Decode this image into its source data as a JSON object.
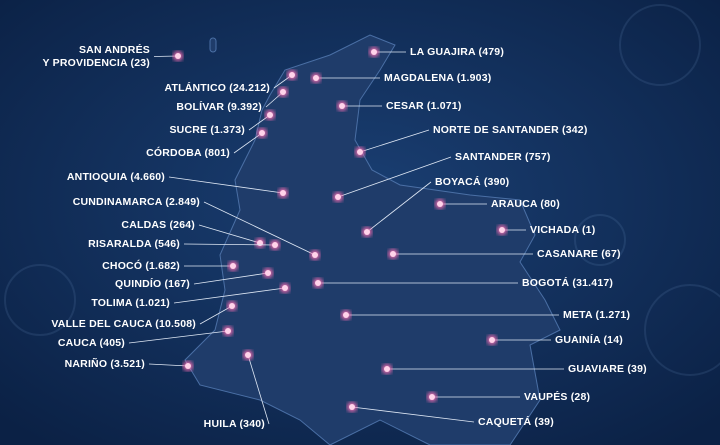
{
  "departments": [
    {
      "lines": [
        "SAN ANDRÉS",
        "Y PROVIDENCIA (23)"
      ]
    },
    {
      "lines": [
        "ATLÁNTICO (24.212)"
      ]
    },
    {
      "lines": [
        "BOLÍVAR (9.392)"
      ]
    },
    {
      "lines": [
        "SUCRE (1.373)"
      ]
    },
    {
      "lines": [
        "CÓRDOBA (801)"
      ]
    },
    {
      "lines": [
        "ANTIOQUIA (4.660)"
      ]
    },
    {
      "lines": [
        "CUNDINAMARCA (2.849)"
      ]
    },
    {
      "lines": [
        "CALDAS (264)"
      ]
    },
    {
      "lines": [
        "RISARALDA (546)"
      ]
    },
    {
      "lines": [
        "CHOCÓ (1.682)"
      ]
    },
    {
      "lines": [
        "QUINDÍO (167)"
      ]
    },
    {
      "lines": [
        "TOLIMA (1.021)"
      ]
    },
    {
      "lines": [
        "VALLE DEL CAUCA (10.508)"
      ]
    },
    {
      "lines": [
        "CAUCA (405)"
      ]
    },
    {
      "lines": [
        "NARIÑO (3.521)"
      ]
    },
    {
      "lines": [
        "HUILA (340)"
      ]
    },
    {
      "lines": [
        "LA GUAJIRA (479)"
      ]
    },
    {
      "lines": [
        "MAGDALENA (1.903)"
      ]
    },
    {
      "lines": [
        "CESAR (1.071)"
      ]
    },
    {
      "lines": [
        "NORTE DE SANTANDER (342)"
      ]
    },
    {
      "lines": [
        "SANTANDER (757)"
      ]
    },
    {
      "lines": [
        "BOYACÁ (390)"
      ]
    },
    {
      "lines": [
        "ARAUCA (80)"
      ]
    },
    {
      "lines": [
        "VICHADA (1)"
      ]
    },
    {
      "lines": [
        "CASANARE (67)"
      ]
    },
    {
      "lines": [
        "BOGOTÁ (31.417)"
      ]
    },
    {
      "lines": [
        "META (1.271)"
      ]
    },
    {
      "lines": [
        "GUAINÍA (14)"
      ]
    },
    {
      "lines": [
        "GUAVIARE (39)"
      ]
    },
    {
      "lines": [
        "VAUPÉS (28)"
      ]
    },
    {
      "lines": [
        "CAQUETÁ (39)"
      ]
    }
  ]
}
